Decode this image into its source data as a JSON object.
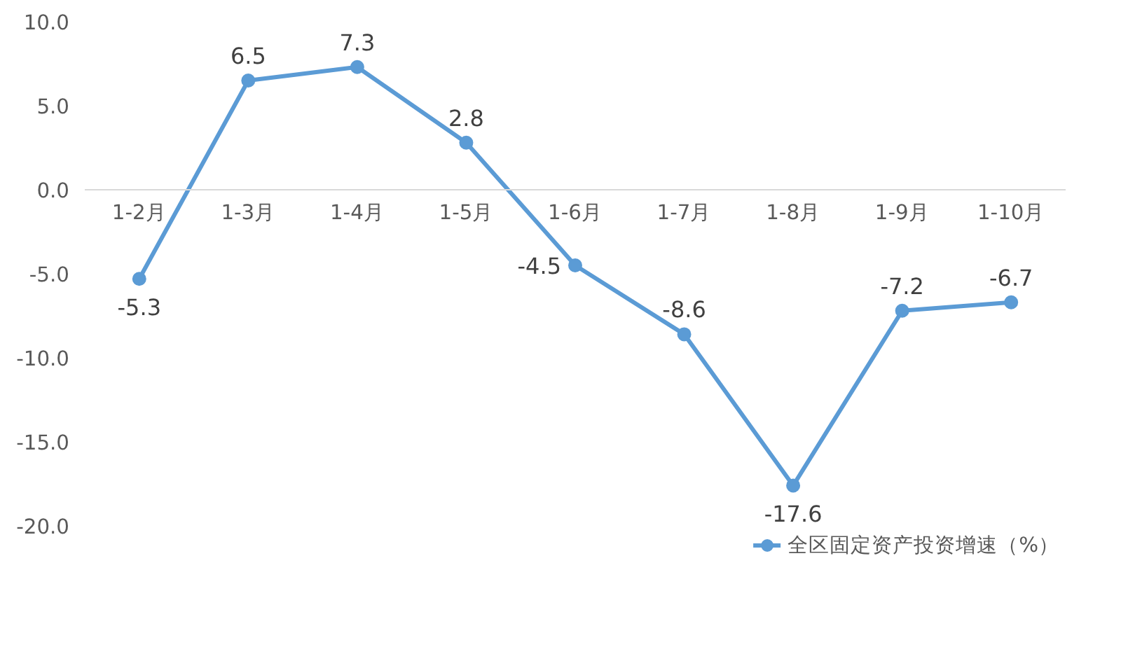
{
  "chart_data": {
    "type": "line",
    "categories": [
      "1-2月",
      "1-3月",
      "1-4月",
      "1-5月",
      "1-6月",
      "1-7月",
      "1-8月",
      "1-9月",
      "1-10月"
    ],
    "series": [
      {
        "name": "全区固定资产投资增速（%）",
        "color": "#5b9bd5",
        "values": [
          -5.3,
          6.5,
          7.3,
          2.8,
          -4.5,
          -8.6,
          -17.6,
          -7.2,
          -6.7
        ]
      }
    ],
    "ylim": [
      -20,
      10
    ],
    "yticks": [
      {
        "value": 10,
        "label": "10.0"
      },
      {
        "value": 5,
        "label": "5.0"
      },
      {
        "value": 0,
        "label": "0.0"
      },
      {
        "value": -5,
        "label": "-5.0"
      },
      {
        "value": -10,
        "label": "-10.0"
      },
      {
        "value": -15,
        "label": "-15.0"
      },
      {
        "value": -20,
        "label": "-20.0"
      }
    ],
    "data_labels": true,
    "legend": "bottom",
    "marker": "circle",
    "grid": false
  }
}
